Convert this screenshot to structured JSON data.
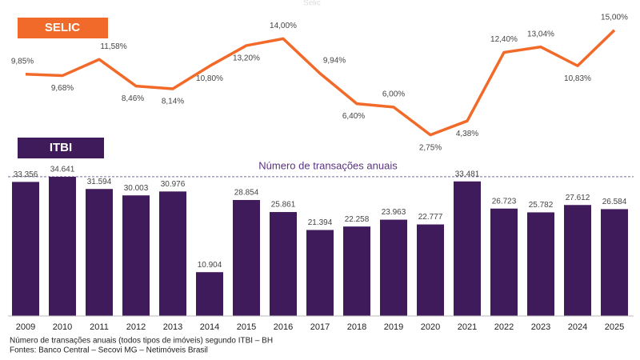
{
  "chart_data": [
    {
      "type": "line",
      "title": "SELIC",
      "subtitle": "Selic",
      "categories": [
        "2009",
        "2010",
        "2011",
        "2012",
        "2013",
        "2014",
        "2015",
        "2016",
        "2017",
        "2018",
        "2019",
        "2020",
        "2021",
        "2022",
        "2023",
        "2024",
        "2025"
      ],
      "series": [
        {
          "name": "SELIC",
          "color": "#f26a2a",
          "values": [
            9.85,
            9.68,
            11.58,
            8.46,
            8.14,
            10.8,
            13.2,
            14.0,
            9.94,
            6.4,
            6.0,
            2.75,
            4.38,
            12.4,
            13.04,
            10.83,
            15.0
          ],
          "value_labels": [
            "9,85%",
            "9,68%",
            "11,58%",
            "8,46%",
            "8,14%",
            "10,80%",
            "13,20%",
            "14,00%",
            "9,94%",
            "6,40%",
            "6,00%",
            "2,75%",
            "4,38%",
            "12,40%",
            "13,04%",
            "10,83%",
            "15,00%"
          ]
        }
      ],
      "ylim": [
        0,
        16
      ]
    },
    {
      "type": "bar",
      "title": "ITBI",
      "annotation": "Número de transações anuais",
      "categories": [
        "2009",
        "2010",
        "2011",
        "2012",
        "2013",
        "2014",
        "2015",
        "2016",
        "2017",
        "2018",
        "2019",
        "2020",
        "2021",
        "2022",
        "2023",
        "2024",
        "2025"
      ],
      "series": [
        {
          "name": "ITBI",
          "color": "#401b5c",
          "values": [
            33356,
            34641,
            31594,
            30003,
            30976,
            10904,
            28854,
            25861,
            21394,
            22258,
            23963,
            22777,
            33481,
            26723,
            25782,
            27612,
            26584
          ],
          "value_labels": [
            "33.356",
            "34.641",
            "31.594",
            "30.003",
            "30.976",
            "10.904",
            "28.854",
            "25.861",
            "21.394",
            "22.258",
            "23.963",
            "22.777",
            "33.481",
            "26.723",
            "25.782",
            "27.612",
            "26.584"
          ]
        }
      ],
      "reference_value": 34641,
      "ylim": [
        0,
        40000
      ]
    }
  ],
  "footer": [
    "Número de transações anuais (todos tipos de imóveis) segundo ITBI – BH",
    "Fontes: Banco Central – Secovi MG – Netimóveis Brasil"
  ]
}
